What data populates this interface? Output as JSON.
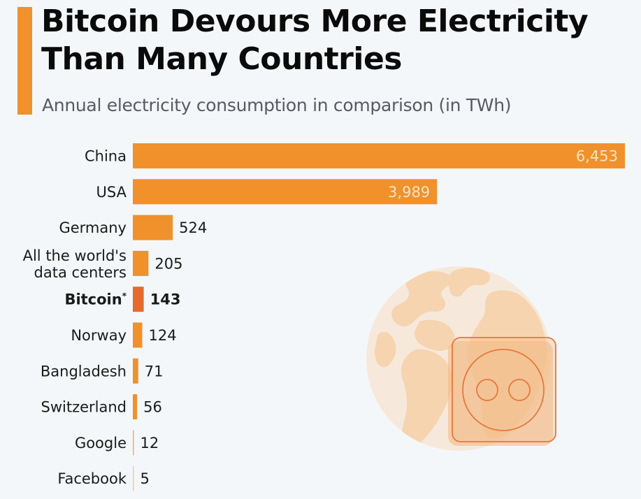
{
  "header": {
    "title_line1": "Bitcoin Devours More Electricity",
    "title_line2": "Than Many Countries",
    "subtitle": "Annual electricity consumption in comparison (in TWh)"
  },
  "colors": {
    "accent": "#f0912c",
    "bar": "#f0912c",
    "highlight_bar": "#e8692c",
    "background": "#f4f7fa",
    "globe": "#f6e9dc",
    "continents": "#f6d4b0",
    "socket_outline": "#e8763c"
  },
  "illustration": {
    "icons": [
      "globe-icon",
      "power-socket-icon"
    ]
  },
  "chart_data": {
    "type": "bar",
    "orientation": "horizontal",
    "title": "Bitcoin Devours More Electricity Than Many Countries",
    "subtitle": "Annual electricity consumption in comparison (in TWh)",
    "xlabel": "",
    "ylabel": "",
    "unit": "TWh",
    "xlim": [
      0,
      6453
    ],
    "grid": false,
    "legend": "none",
    "categories": [
      "China",
      "USA",
      "Germany",
      "All the world's data centers",
      "Bitcoin*",
      "Norway",
      "Bangladesh",
      "Switzerland",
      "Google",
      "Facebook"
    ],
    "category_lines": [
      [
        "China"
      ],
      [
        "USA"
      ],
      [
        "Germany"
      ],
      [
        "All the world's",
        "data centers"
      ],
      [
        "Bitcoin*"
      ],
      [
        "Norway"
      ],
      [
        "Bangladesh"
      ],
      [
        "Switzerland"
      ],
      [
        "Google"
      ],
      [
        "Facebook"
      ]
    ],
    "values": [
      6453,
      3989,
      524,
      205,
      143,
      124,
      71,
      56,
      12,
      5
    ],
    "value_labels": [
      "6,453",
      "3,989",
      "524",
      "205",
      "143",
      "124",
      "71",
      "56",
      "12",
      "5"
    ],
    "highlighted": "Bitcoin*"
  }
}
